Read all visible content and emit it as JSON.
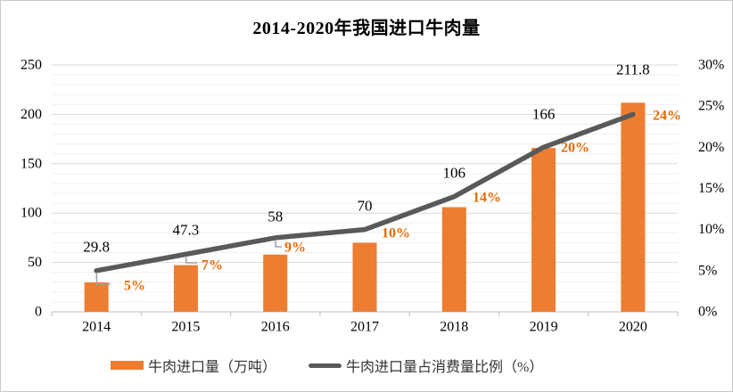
{
  "title": "2014-2020年我国进口牛肉量",
  "chart_data": {
    "type": "combo_bar_line",
    "title": "2014-2020年我国进口牛肉量",
    "categories": [
      "2014",
      "2015",
      "2016",
      "2017",
      "2018",
      "2019",
      "2020"
    ],
    "series": [
      {
        "name": "牛肉进口量（万吨）",
        "chart_type": "bar",
        "axis": "left",
        "color": "#ED7D31",
        "values": [
          29.8,
          47.3,
          58,
          70,
          106,
          166,
          211.8
        ],
        "data_labels": [
          "29.8",
          "47.3",
          "58",
          "70",
          "106",
          "166",
          "211.8"
        ]
      },
      {
        "name": "牛肉进口量占消费量比例（%）",
        "chart_type": "line",
        "axis": "right",
        "color": "#595959",
        "values": [
          5,
          7,
          9,
          10,
          14,
          20,
          24
        ],
        "data_labels": [
          "5%",
          "7%",
          "9%",
          "10%",
          "14%",
          "20%",
          "24%"
        ]
      }
    ],
    "left_axis": {
      "min": 0,
      "max": 250,
      "major_step": 50,
      "minor_step": 10,
      "ticks": [
        "0",
        "50",
        "100",
        "150",
        "200",
        "250"
      ]
    },
    "right_axis": {
      "min": 0,
      "max": 30,
      "major_step": 5,
      "ticks": [
        "0%",
        "5%",
        "10%",
        "15%",
        "20%",
        "25%",
        "30%"
      ]
    },
    "grid": {
      "major": true,
      "minor": true
    },
    "legend_position": "bottom"
  },
  "colors": {
    "bar": "#ED7D31",
    "line": "#595959",
    "pct_label": "#E36C09",
    "value_label": "#000000",
    "axis_label": "#000000",
    "grid_major": "#D9D9D9",
    "grid_minor": "#F0F0F0",
    "axis_line": "#BFBFBF",
    "leader": "#A0A0A0",
    "border": "#C9C9C9"
  }
}
